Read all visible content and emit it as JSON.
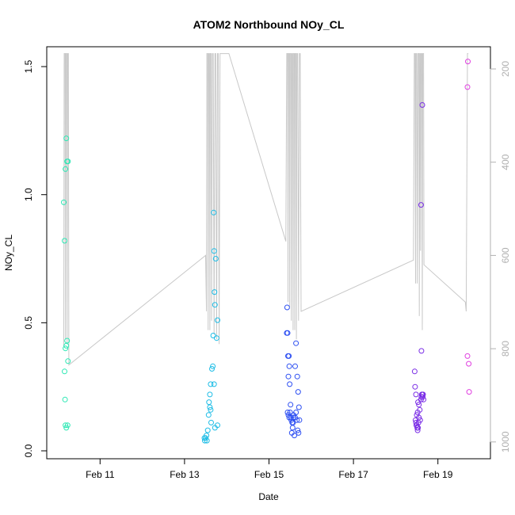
{
  "chart_data": {
    "type": "scatter",
    "title": "ATOM2 Northbound NOy_CL",
    "xlabel": "Date",
    "ylabel": "NOy_CL",
    "x_unit": "days since Feb 10 00:00",
    "xlim": [
      10.0,
      19.85
    ],
    "ylim": [
      0.0,
      1.55
    ],
    "x_ticks": [
      {
        "value": 11,
        "label": "Feb 11"
      },
      {
        "value": 13,
        "label": "Feb 13"
      },
      {
        "value": 15,
        "label": "Feb 15"
      },
      {
        "value": 17,
        "label": "Feb 17"
      },
      {
        "value": 19,
        "label": "Feb 19"
      }
    ],
    "y_ticks": [
      {
        "value": 0.0,
        "label": "0.0"
      },
      {
        "value": 0.5,
        "label": "0.5"
      },
      {
        "value": 1.0,
        "label": "1.0"
      },
      {
        "value": 1.5,
        "label": "1.5"
      }
    ],
    "right_axis": {
      "description": "pressure (hPa), inverted",
      "lim_top": 167,
      "lim_bottom": 1025,
      "ticks": [
        {
          "value": 200,
          "label": "200"
        },
        {
          "value": 400,
          "label": "400"
        },
        {
          "value": 600,
          "label": "600"
        },
        {
          "value": 800,
          "label": "800"
        },
        {
          "value": 1000,
          "label": "1000"
        }
      ],
      "color": "#b0b0b0"
    },
    "grid": false,
    "legend": "none",
    "marker": "open-circle",
    "color_scale": "time-gradient (cyan-green → blue → purple → magenta)",
    "series": [
      {
        "color": "#2de8b4",
        "points": [
          [
            10.14,
            0.97
          ],
          [
            10.16,
            0.82
          ],
          [
            10.18,
            1.1
          ],
          [
            10.2,
            1.22
          ],
          [
            10.22,
            1.13
          ],
          [
            10.24,
            1.13
          ],
          [
            10.18,
            0.4
          ],
          [
            10.2,
            0.41
          ],
          [
            10.22,
            0.43
          ],
          [
            10.24,
            0.35
          ],
          [
            10.16,
            0.31
          ],
          [
            10.17,
            0.2
          ],
          [
            10.18,
            0.1
          ],
          [
            10.2,
            0.09
          ],
          [
            10.23,
            0.1
          ]
        ]
      },
      {
        "color": "#1ebde6",
        "points": [
          [
            13.47,
            0.05
          ],
          [
            13.48,
            0.04
          ],
          [
            13.5,
            0.05
          ],
          [
            13.52,
            0.06
          ],
          [
            13.53,
            0.04
          ],
          [
            13.55,
            0.08
          ],
          [
            13.57,
            0.14
          ],
          [
            13.58,
            0.19
          ],
          [
            13.6,
            0.17
          ],
          [
            13.62,
            0.16
          ],
          [
            13.6,
            0.22
          ],
          [
            13.62,
            0.26
          ],
          [
            13.63,
            0.11
          ],
          [
            13.65,
            0.32
          ],
          [
            13.67,
            0.33
          ],
          [
            13.7,
            0.26
          ],
          [
            13.72,
            0.09
          ],
          [
            13.78,
            0.1
          ],
          [
            13.68,
            0.45
          ],
          [
            13.76,
            0.44
          ],
          [
            13.78,
            0.51
          ],
          [
            13.72,
            0.57
          ],
          [
            13.71,
            0.62
          ],
          [
            13.74,
            0.75
          ],
          [
            13.7,
            0.78
          ],
          [
            13.69,
            0.93
          ]
        ]
      },
      {
        "color": "#2d4ff2",
        "points": [
          [
            15.43,
            0.56
          ],
          [
            15.42,
            0.46
          ],
          [
            15.44,
            0.46
          ],
          [
            15.45,
            0.37
          ],
          [
            15.47,
            0.37
          ],
          [
            15.48,
            0.33
          ],
          [
            15.46,
            0.29
          ],
          [
            15.49,
            0.26
          ],
          [
            15.44,
            0.15
          ],
          [
            15.46,
            0.14
          ],
          [
            15.48,
            0.13
          ],
          [
            15.5,
            0.15
          ],
          [
            15.52,
            0.13
          ],
          [
            15.53,
            0.12
          ],
          [
            15.55,
            0.11
          ],
          [
            15.51,
            0.18
          ],
          [
            15.54,
            0.07
          ],
          [
            15.56,
            0.09
          ],
          [
            15.58,
            0.13
          ],
          [
            15.6,
            0.06
          ],
          [
            15.62,
            0.13
          ],
          [
            15.64,
            0.15
          ],
          [
            15.66,
            0.12
          ],
          [
            15.68,
            0.08
          ],
          [
            15.7,
            0.07
          ],
          [
            15.62,
            0.33
          ],
          [
            15.64,
            0.42
          ],
          [
            15.67,
            0.29
          ],
          [
            15.69,
            0.23
          ],
          [
            15.71,
            0.17
          ],
          [
            15.72,
            0.12
          ],
          [
            15.58,
            0.14
          ],
          [
            15.57,
            0.11
          ]
        ]
      },
      {
        "color": "#7a2de6",
        "points": [
          [
            18.45,
            0.31
          ],
          [
            18.46,
            0.25
          ],
          [
            18.48,
            0.22
          ],
          [
            18.47,
            0.12
          ],
          [
            18.48,
            0.11
          ],
          [
            18.49,
            0.1
          ],
          [
            18.5,
            0.1
          ],
          [
            18.51,
            0.09
          ],
          [
            18.52,
            0.08
          ],
          [
            18.53,
            0.09
          ],
          [
            18.54,
            0.11
          ],
          [
            18.55,
            0.13
          ],
          [
            18.5,
            0.14
          ],
          [
            18.52,
            0.15
          ],
          [
            18.53,
            0.19
          ],
          [
            18.55,
            0.18
          ],
          [
            18.57,
            0.16
          ],
          [
            18.58,
            0.12
          ],
          [
            18.6,
            0.2
          ],
          [
            18.61,
            0.21
          ],
          [
            18.63,
            0.22
          ],
          [
            18.64,
            0.21
          ],
          [
            18.66,
            0.2
          ],
          [
            18.62,
            0.22
          ],
          [
            18.65,
            0.22
          ],
          [
            18.61,
            0.39
          ],
          [
            18.6,
            0.96
          ],
          [
            18.63,
            1.35
          ]
        ]
      },
      {
        "color": "#e040e0",
        "points": [
          [
            19.71,
            1.52
          ],
          [
            19.7,
            1.42
          ],
          [
            19.7,
            0.37
          ],
          [
            19.73,
            0.34
          ],
          [
            19.74,
            0.23
          ]
        ]
      }
    ],
    "pressure_trace": {
      "color": "#c8c8c8",
      "points": [
        [
          10.14,
          795
        ],
        [
          10.15,
          167
        ],
        [
          10.17,
          167
        ],
        [
          10.18,
          780
        ],
        [
          10.19,
          167
        ],
        [
          10.21,
          167
        ],
        [
          10.22,
          790
        ],
        [
          10.23,
          167
        ],
        [
          10.25,
          167
        ],
        [
          10.26,
          835
        ],
        [
          13.5,
          600
        ],
        [
          13.52,
          720
        ],
        [
          13.53,
          167
        ],
        [
          13.55,
          167
        ],
        [
          13.56,
          760
        ],
        [
          13.57,
          167
        ],
        [
          13.59,
          167
        ],
        [
          13.6,
          760
        ],
        [
          13.61,
          167
        ],
        [
          13.63,
          167
        ],
        [
          13.64,
          740
        ],
        [
          13.66,
          167
        ],
        [
          13.68,
          167
        ],
        [
          13.7,
          770
        ],
        [
          13.72,
          167
        ],
        [
          13.74,
          167
        ],
        [
          13.76,
          780
        ],
        [
          13.78,
          167
        ],
        [
          13.8,
          167
        ],
        [
          13.82,
          790
        ],
        [
          13.84,
          167
        ],
        [
          14.05,
          167
        ],
        [
          15.4,
          570
        ],
        [
          15.42,
          167
        ],
        [
          15.44,
          167
        ],
        [
          15.45,
          700
        ],
        [
          15.46,
          167
        ],
        [
          15.48,
          167
        ],
        [
          15.49,
          710
        ],
        [
          15.5,
          167
        ],
        [
          15.52,
          167
        ],
        [
          15.53,
          740
        ],
        [
          15.54,
          167
        ],
        [
          15.56,
          167
        ],
        [
          15.57,
          760
        ],
        [
          15.58,
          167
        ],
        [
          15.6,
          167
        ],
        [
          15.61,
          760
        ],
        [
          15.62,
          167
        ],
        [
          15.64,
          167
        ],
        [
          15.65,
          780
        ],
        [
          15.66,
          167
        ],
        [
          15.68,
          167
        ],
        [
          15.7,
          740
        ],
        [
          15.72,
          167
        ],
        [
          15.74,
          167
        ],
        [
          15.76,
          720
        ],
        [
          18.42,
          610
        ],
        [
          18.44,
          167
        ],
        [
          18.46,
          167
        ],
        [
          18.47,
          660
        ],
        [
          18.48,
          167
        ],
        [
          18.5,
          167
        ],
        [
          18.51,
          660
        ],
        [
          18.53,
          167
        ],
        [
          18.55,
          167
        ],
        [
          18.56,
          730
        ],
        [
          18.57,
          167
        ],
        [
          18.58,
          167
        ],
        [
          18.59,
          590
        ],
        [
          18.6,
          167
        ],
        [
          18.62,
          167
        ],
        [
          18.63,
          760
        ],
        [
          18.64,
          167
        ],
        [
          18.66,
          167
        ],
        [
          18.67,
          620
        ],
        [
          19.65,
          700
        ],
        [
          19.67,
          720
        ],
        [
          19.7,
          167
        ],
        [
          19.72,
          167
        ]
      ]
    }
  }
}
